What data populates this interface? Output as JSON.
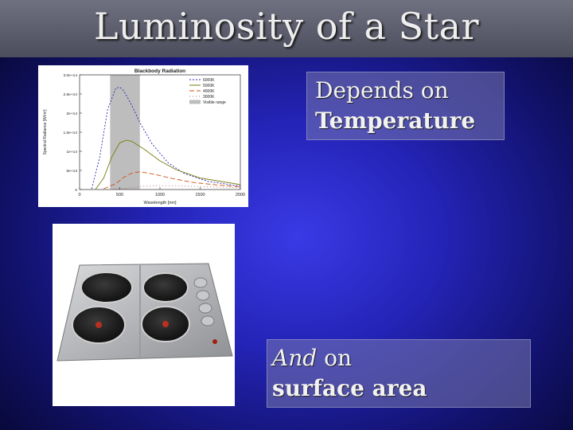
{
  "slide": {
    "title": "Luminosity of a Star",
    "box1": {
      "line1": "Depends on",
      "line2": "Temperature"
    },
    "box2": {
      "line1_italic": "And",
      "line1_rest": " on",
      "line2": "surface area"
    }
  },
  "chart_data": {
    "type": "line",
    "title": "Blackbody Radiation",
    "xlabel": "Wavelength [nm]",
    "ylabel": "Spectral Radiance [W/m²]",
    "xlim": [
      0,
      2000
    ],
    "ylim": [
      0,
      30000000000000
    ],
    "x_ticks": [
      0,
      500,
      1000,
      1500,
      2000
    ],
    "y_ticks": [
      "0",
      "5e+13",
      "1e+14",
      "1.5e+14",
      "2e+14",
      "2.5e+14",
      "3.0e+14"
    ],
    "y_tick_values": [
      0,
      5000000000000,
      10000000000000,
      15000000000000,
      20000000000000,
      25000000000000,
      30000000000000
    ],
    "visible_range": [
      380,
      750
    ],
    "grid": false,
    "legend_placement": "top-right",
    "series": [
      {
        "name": "6000K",
        "color": "#2a2ab0",
        "dash": "2,2",
        "x": [
          150,
          250,
          350,
          450,
          500,
          550,
          650,
          750,
          900,
          1100,
          1300,
          1600,
          2000
        ],
        "y": [
          200000000000,
          8500000000000,
          21000000000000,
          26500000000000,
          26800000000000,
          25800000000000,
          22000000000000,
          17500000000000,
          12000000000000,
          7000000000000,
          4200000000000,
          2100000000000,
          900000000000
        ]
      },
      {
        "name": "5000K",
        "color": "#7a7a10",
        "dash": "",
        "x": [
          200,
          300,
          400,
          500,
          580,
          650,
          800,
          1000,
          1200,
          1500,
          2000
        ],
        "y": [
          100000000000,
          3000000000000,
          8500000000000,
          12200000000000,
          12900000000000,
          12600000000000,
          10600000000000,
          7500000000000,
          5200000000000,
          3000000000000,
          1300000000000
        ]
      },
      {
        "name": "4000K",
        "color": "#d05010",
        "dash": "6,3",
        "x": [
          300,
          450,
          550,
          650,
          730,
          800,
          950,
          1150,
          1400,
          1700,
          2000
        ],
        "y": [
          200000000000,
          1500000000000,
          3200000000000,
          4300000000000,
          4600000000000,
          4500000000000,
          3900000000000,
          2900000000000,
          1900000000000,
          1200000000000,
          700000000000
        ]
      },
      {
        "name": "3000K",
        "color": "#b07070",
        "dash": "1,3",
        "x": [
          400,
          600,
          800,
          950,
          1100,
          1300,
          1600,
          2000
        ],
        "y": [
          50000000000,
          400000000000,
          850000000000,
          1000000000000,
          1000000000000,
          900000000000,
          700000000000,
          450000000000
        ]
      }
    ],
    "legend_extra": "Visible range"
  },
  "colors": {
    "background_center": "#3a3ae6",
    "background_edge": "#070732",
    "title_bar": "#5e5f6e",
    "text": "#f2f2f2"
  }
}
